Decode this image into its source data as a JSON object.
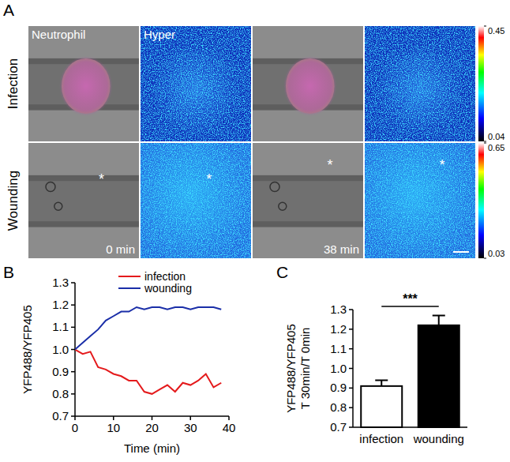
{
  "panel_a": {
    "label": "A",
    "column_titles": [
      "Neutrophil",
      "Hyper"
    ],
    "rows": [
      {
        "label": "Infection",
        "colorbar": {
          "range": [
            0.04,
            0.45
          ],
          "ticks": [
            0.04,
            0.45
          ]
        }
      },
      {
        "label": "Wounding",
        "colorbar": {
          "range": [
            0.03,
            0.65
          ],
          "ticks": [
            0.03,
            0.65
          ]
        },
        "times": [
          "0 min",
          "38 min"
        ],
        "annotation": "*"
      }
    ]
  },
  "chart_data": [
    {
      "panel_label": "B",
      "type": "line",
      "x": [
        0,
        2,
        4,
        6,
        8,
        10,
        12,
        14,
        16,
        18,
        20,
        22,
        24,
        26,
        28,
        30,
        32,
        34,
        36,
        38
      ],
      "series": [
        {
          "name": "infection",
          "color": "#e41a1c",
          "values": [
            1.0,
            0.98,
            0.99,
            0.92,
            0.91,
            0.89,
            0.88,
            0.86,
            0.86,
            0.81,
            0.8,
            0.82,
            0.84,
            0.81,
            0.85,
            0.84,
            0.86,
            0.89,
            0.83,
            0.85
          ]
        },
        {
          "name": "wounding",
          "color": "#1a2ea8",
          "values": [
            1.0,
            1.03,
            1.06,
            1.09,
            1.13,
            1.15,
            1.17,
            1.17,
            1.19,
            1.18,
            1.19,
            1.19,
            1.18,
            1.19,
            1.19,
            1.18,
            1.19,
            1.19,
            1.19,
            1.18
          ]
        }
      ],
      "xlim": [
        0,
        40
      ],
      "xticks": [
        0,
        10,
        20,
        30,
        40
      ],
      "ylim": [
        0.7,
        1.3
      ],
      "yticks": [
        0.7,
        0.8,
        0.9,
        {
          "value": 1,
          "label": "1.0"
        },
        1.1,
        1.2,
        1.3
      ],
      "x_label": "Time (min)",
      "y_label": "YFP488/YFP405",
      "legend": "top"
    },
    {
      "panel_label": "C",
      "type": "bar",
      "categories": [
        "infection",
        "wounding"
      ],
      "values": [
        0.91,
        1.22
      ],
      "errors": [
        0.03,
        0.05
      ],
      "colors": [
        "#ffffff",
        "#000000"
      ],
      "ylim": [
        0.7,
        1.3
      ],
      "yticks": [
        0.7,
        0.8,
        0.9,
        {
          "value": 1,
          "label": "1.0"
        },
        1.1,
        1.2,
        1.3
      ],
      "y_label": [
        "YFP488/YFP405",
        "T 30min/T 0min"
      ],
      "annotation": "***"
    }
  ]
}
